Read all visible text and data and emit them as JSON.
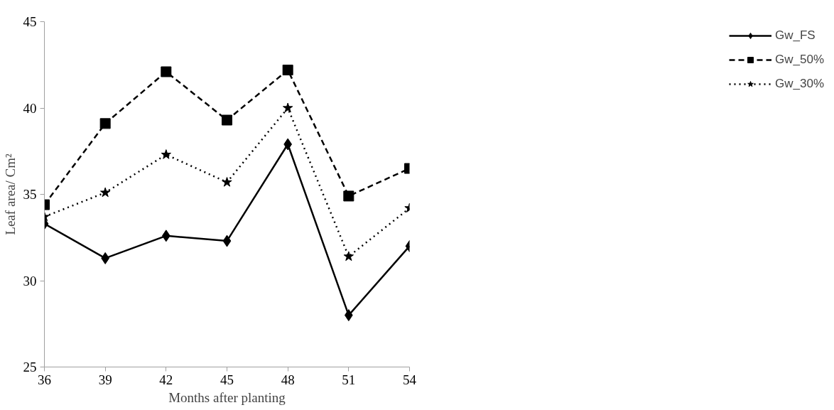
{
  "chart_data": {
    "type": "line",
    "xlabel": "Months after planting",
    "ylabel": "Leaf area/ Cm²",
    "x": [
      36,
      39,
      42,
      45,
      48,
      51,
      54
    ],
    "xlim": [
      36,
      54
    ],
    "xticks": [
      36,
      39,
      42,
      45,
      48,
      51,
      54
    ],
    "ylim": [
      25,
      45
    ],
    "yticks": [
      25,
      30,
      35,
      40,
      45
    ],
    "grid": false,
    "legend": "right",
    "series": [
      {
        "name": "Gw_FS",
        "color": "#000000",
        "marker": "diamond",
        "line_style": "solid",
        "values": [
          33.3,
          31.3,
          32.6,
          32.3,
          37.9,
          28.0,
          32.0
        ]
      },
      {
        "name": "Gw_50%",
        "color": "#000000",
        "marker": "square",
        "line_style": "dashed",
        "values": [
          34.4,
          39.1,
          42.1,
          39.3,
          42.2,
          34.9,
          36.5
        ]
      },
      {
        "name": "Gw_30%",
        "color": "#000000",
        "marker": "star",
        "line_style": "dotted",
        "values": [
          33.7,
          35.1,
          37.3,
          35.7,
          40.0,
          31.4,
          34.2
        ]
      }
    ]
  }
}
